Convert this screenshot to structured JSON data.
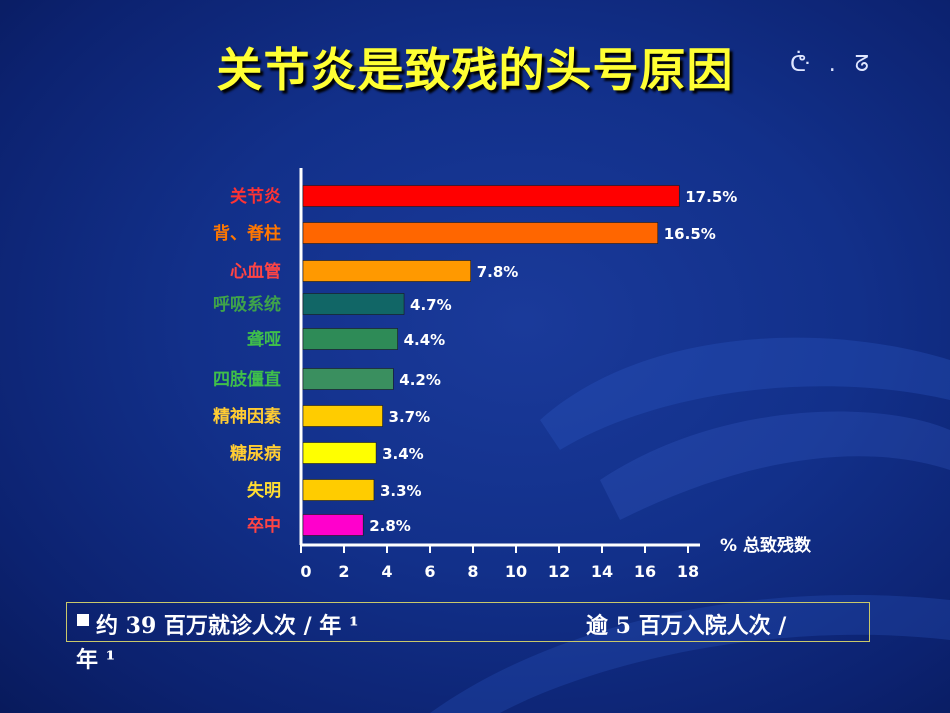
{
  "title": "关节炎是致残的头号原因",
  "title_decoration": "ᕩ . ᘔ",
  "chart_data": {
    "type": "bar",
    "orientation": "horizontal",
    "categories": [
      "关节炎",
      "背、脊柱",
      "心血管",
      "呼吸系统",
      "聋哑",
      "四肢僵直",
      "精神因素",
      "糖尿病",
      "失明",
      "卒中"
    ],
    "values": [
      17.5,
      16.5,
      7.8,
      4.7,
      4.4,
      4.2,
      3.7,
      3.4,
      3.3,
      2.8
    ],
    "value_labels": [
      "17.5%",
      "16.5%",
      "7.8%",
      "4.7%",
      "4.4%",
      "4.2%",
      "3.7%",
      "3.4%",
      "3.3%",
      "2.8%"
    ],
    "bar_colors": [
      "#ff0000",
      "#ff6600",
      "#ff9900",
      "#116666",
      "#2e8b57",
      "#3a8f5f",
      "#ffcc00",
      "#ffff00",
      "#ffcc00",
      "#ff00cc"
    ],
    "label_colors": [
      "#ff3333",
      "#ff7700",
      "#ff4444",
      "#3fa34a",
      "#3fbf4a",
      "#3fbf4a",
      "#ffcc33",
      "#ffcc33",
      "#ffdd33",
      "#ff4444"
    ],
    "xticks": [
      0,
      2,
      4,
      6,
      8,
      10,
      12,
      14,
      16,
      18
    ],
    "xlim": [
      0,
      18
    ],
    "xlabel": "%  总致残数",
    "grid": false
  },
  "footer": {
    "line1_left": "约 39 百万就诊人次  /  年 ¹",
    "line1_right": "逾  5  百万入院人次 /",
    "line2": "年 ¹"
  }
}
